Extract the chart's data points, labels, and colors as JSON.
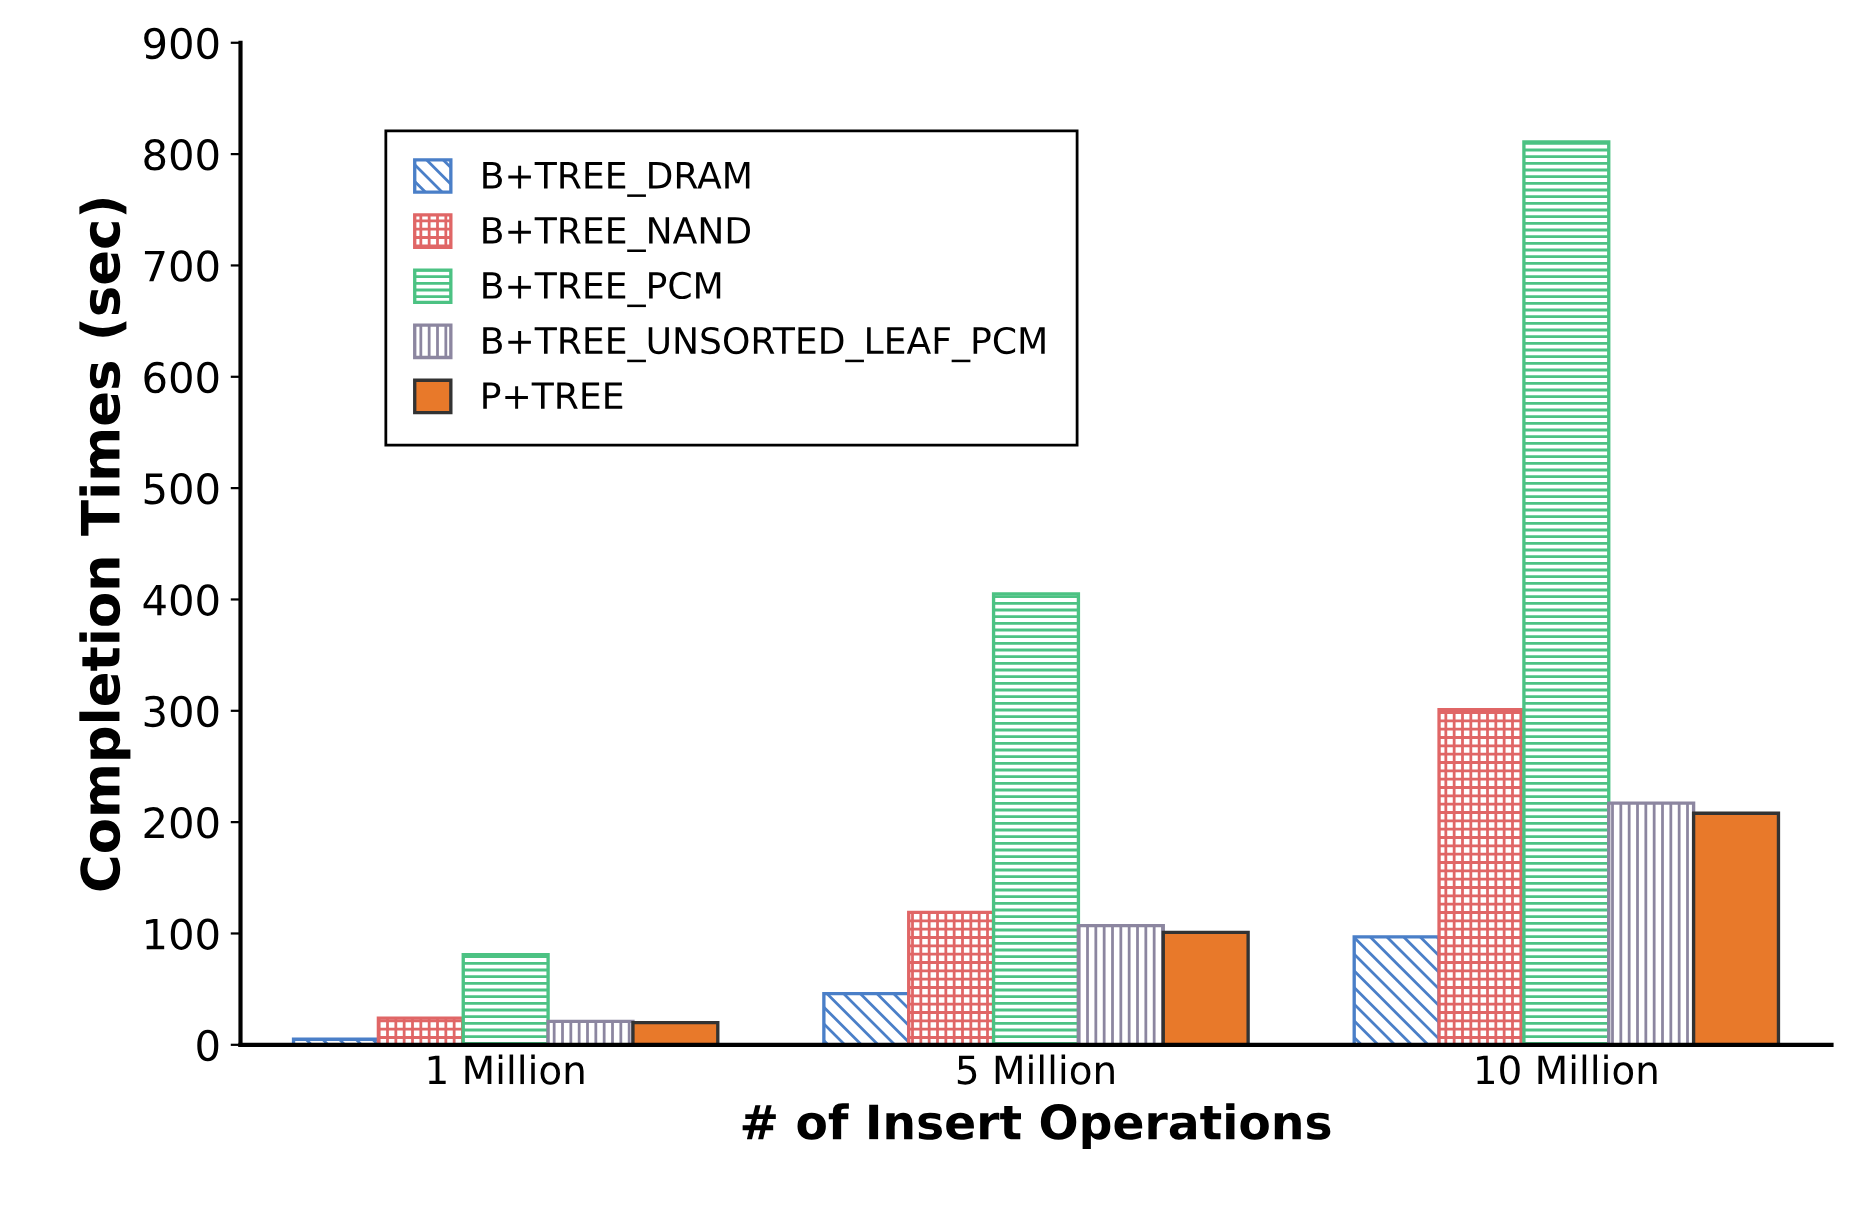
{
  "chart_data": {
    "type": "bar",
    "xlabel": "# of Insert Operations",
    "ylabel": "Completion Times (sec)",
    "categories": [
      "1 Million",
      "5 Million",
      "10 Million"
    ],
    "series": [
      {
        "name": "B+TREE_DRAM",
        "color": "#4a7fc8",
        "values": [
          5,
          46,
          97
        ]
      },
      {
        "name": "B+TREE_NAND",
        "color": "#e06666",
        "values": [
          24,
          119,
          301
        ]
      },
      {
        "name": "B+TREE_PCM",
        "color": "#4cc283",
        "values": [
          81,
          405,
          811
        ]
      },
      {
        "name": "B+TREE_UNSORTED_LEAF_PCM",
        "color": "#8c86a0",
        "values": [
          21,
          107,
          217
        ]
      },
      {
        "name": "P+TREE",
        "color": "#e8792a",
        "values": [
          20,
          101,
          208
        ]
      }
    ],
    "ylim": [
      0,
      900
    ],
    "yticks": [
      0,
      100,
      200,
      300,
      400,
      500,
      600,
      700,
      800,
      900
    ],
    "legend": "top left",
    "grid": false
  }
}
